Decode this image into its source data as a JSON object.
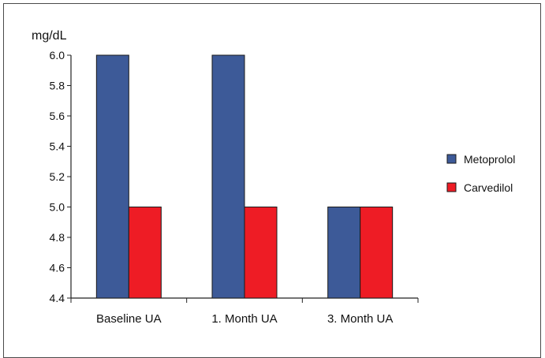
{
  "chart_data": {
    "type": "bar",
    "ylabel": "mg/dL",
    "categories": [
      "Baseline UA",
      "1. Month UA",
      "3. Month UA"
    ],
    "series": [
      {
        "name": "Metoprolol",
        "values": [
          6.0,
          6.0,
          5.0
        ]
      },
      {
        "name": "Carvedilol",
        "values": [
          5.0,
          5.0,
          5.0
        ]
      }
    ],
    "ylim": [
      4.4,
      6.0
    ],
    "yticks": [
      "6.0",
      "5.8",
      "5.6",
      "5.4",
      "5.2",
      "5.0",
      "4.8",
      "4.6",
      "4.4"
    ],
    "grid": false,
    "legend_position": "right",
    "colors": {
      "Metoprolol": "#3d5a98",
      "Carvedilol": "#ee1c25"
    }
  }
}
